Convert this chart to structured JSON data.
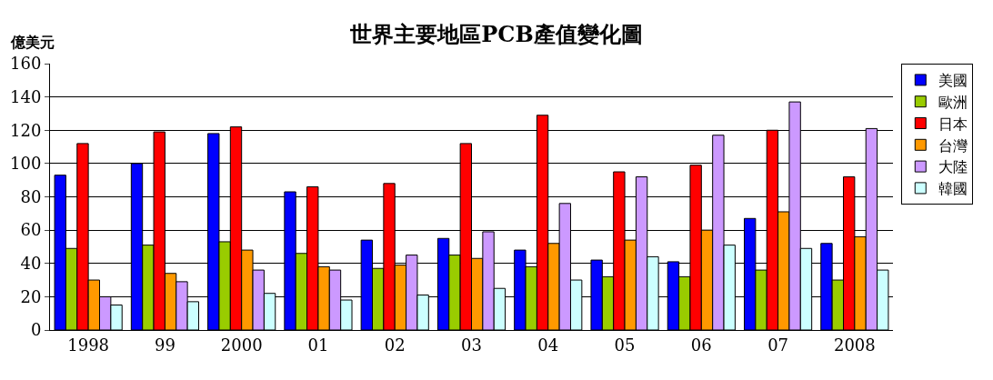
{
  "chart_data": {
    "type": "bar",
    "title": "世界主要地區PCB產值變化圖",
    "ylabel": "億美元",
    "categories": [
      "1998",
      "99",
      "2000",
      "01",
      "02",
      "03",
      "04",
      "05",
      "06",
      "07",
      "2008"
    ],
    "series": [
      {
        "name": "美國",
        "color": "#0000ff",
        "values": [
          93,
          100,
          118,
          83,
          54,
          55,
          48,
          42,
          41,
          67,
          52
        ]
      },
      {
        "name": "歐洲",
        "color": "#99cc00",
        "values": [
          49,
          51,
          53,
          46,
          37,
          45,
          38,
          32,
          32,
          36,
          30
        ]
      },
      {
        "name": "日本",
        "color": "#ff0000",
        "values": [
          112,
          119,
          122,
          86,
          88,
          112,
          129,
          95,
          99,
          120,
          92
        ]
      },
      {
        "name": "台灣",
        "color": "#ff9900",
        "values": [
          30,
          34,
          48,
          38,
          39,
          43,
          52,
          54,
          60,
          71,
          56
        ]
      },
      {
        "name": "大陸",
        "color": "#cc99ff",
        "values": [
          20,
          29,
          36,
          36,
          45,
          59,
          76,
          92,
          117,
          137,
          121
        ]
      },
      {
        "name": "韓國",
        "color": "#ccffff",
        "values": [
          15,
          17,
          22,
          18,
          21,
          25,
          30,
          44,
          51,
          49,
          36
        ]
      }
    ],
    "ylim": [
      0,
      160
    ],
    "yticks": [
      0,
      20,
      40,
      60,
      80,
      100,
      120,
      140,
      160
    ],
    "grid": "y",
    "legend": "right"
  }
}
